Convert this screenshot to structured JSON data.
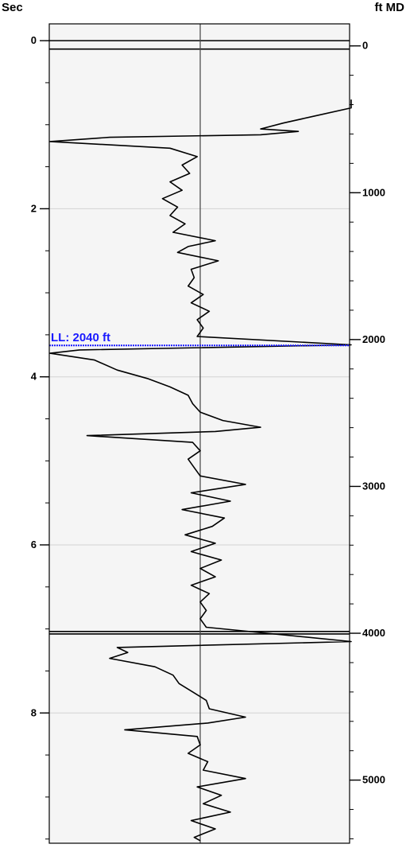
{
  "chart_data": {
    "type": "line",
    "left_axis": {
      "title": "Sec",
      "range": [
        -0.2,
        9.55
      ],
      "major_ticks": [
        0,
        2,
        4,
        6,
        8
      ],
      "tick_labels": [
        "0",
        "2",
        "4",
        "6",
        "8"
      ],
      "minor_step": 0.5,
      "grid": true
    },
    "right_axis": {
      "title": "ft MD",
      "range": [
        -150,
        5430
      ],
      "major_ticks": [
        0,
        1000,
        2000,
        3000,
        4000,
        5000
      ],
      "tick_labels": [
        "0",
        "1000",
        "2000",
        "3000",
        "4000",
        "5000"
      ],
      "minor_step": 200
    },
    "center_line": {
      "value": 0
    },
    "separators_sec": [
      0.0,
      0.1,
      7.03,
      7.06
    ],
    "marker": {
      "label": "LL: 2040 ft",
      "depth_ft": 2040,
      "time_sec": 3.55,
      "color": "#1a1aff"
    },
    "series": [
      {
        "color": "#000000",
        "points": [
          [
            0.7,
            1.45
          ],
          [
            0.8,
            1.1
          ],
          [
            0.9,
            0.75
          ],
          [
            0.98,
            0.55
          ],
          [
            1.05,
            0.4
          ],
          [
            1.08,
            0.65
          ],
          [
            1.12,
            0.4
          ],
          [
            1.15,
            -0.6
          ],
          [
            1.2,
            -1.0
          ],
          [
            1.28,
            -0.2
          ],
          [
            1.38,
            -0.02
          ],
          [
            1.48,
            -0.12
          ],
          [
            1.58,
            -0.07
          ],
          [
            1.68,
            -0.2
          ],
          [
            1.78,
            -0.12
          ],
          [
            1.88,
            -0.25
          ],
          [
            1.98,
            -0.15
          ],
          [
            2.08,
            -0.2
          ],
          [
            2.18,
            -0.1
          ],
          [
            2.28,
            -0.18
          ],
          [
            2.38,
            0.1
          ],
          [
            2.45,
            -0.08
          ],
          [
            2.52,
            -0.15
          ],
          [
            2.62,
            0.12
          ],
          [
            2.72,
            -0.06
          ],
          [
            2.82,
            -0.04
          ],
          [
            2.92,
            -0.08
          ],
          [
            3.02,
            0.02
          ],
          [
            3.12,
            -0.06
          ],
          [
            3.22,
            0.06
          ],
          [
            3.32,
            -0.02
          ],
          [
            3.42,
            0.02
          ],
          [
            3.52,
            -0.02
          ],
          [
            3.62,
            1.6
          ],
          [
            3.68,
            -0.8
          ],
          [
            3.72,
            -1.05
          ],
          [
            3.8,
            -0.7
          ],
          [
            3.92,
            -0.55
          ],
          [
            4.02,
            -0.35
          ],
          [
            4.12,
            -0.2
          ],
          [
            4.22,
            -0.08
          ],
          [
            4.32,
            -0.05
          ],
          [
            4.42,
            0.0
          ],
          [
            4.52,
            0.15
          ],
          [
            4.6,
            0.4
          ],
          [
            4.65,
            0.1
          ],
          [
            4.7,
            -0.75
          ],
          [
            4.78,
            -0.05
          ],
          [
            4.88,
            0.0
          ],
          [
            4.98,
            -0.08
          ],
          [
            5.08,
            -0.04
          ],
          [
            5.18,
            0.0
          ],
          [
            5.28,
            0.3
          ],
          [
            5.38,
            -0.06
          ],
          [
            5.48,
            0.2
          ],
          [
            5.58,
            -0.12
          ],
          [
            5.68,
            0.16
          ],
          [
            5.78,
            0.08
          ],
          [
            5.88,
            -0.1
          ],
          [
            5.98,
            0.1
          ],
          [
            6.08,
            -0.06
          ],
          [
            6.18,
            0.14
          ],
          [
            6.28,
            0.0
          ],
          [
            6.38,
            0.1
          ],
          [
            6.48,
            -0.06
          ],
          [
            6.58,
            0.06
          ],
          [
            6.68,
            0.0
          ],
          [
            6.78,
            0.04
          ],
          [
            6.88,
            0.0
          ],
          [
            6.98,
            0.04
          ],
          [
            7.15,
            1.5
          ],
          [
            7.22,
            -0.55
          ],
          [
            7.28,
            -0.48
          ],
          [
            7.35,
            -0.6
          ],
          [
            7.45,
            -0.3
          ],
          [
            7.55,
            -0.18
          ],
          [
            7.65,
            -0.14
          ],
          [
            7.75,
            -0.05
          ],
          [
            7.85,
            0.04
          ],
          [
            7.95,
            0.06
          ],
          [
            8.05,
            0.3
          ],
          [
            8.12,
            0.05
          ],
          [
            8.2,
            -0.5
          ],
          [
            8.28,
            -0.02
          ],
          [
            8.38,
            0.0
          ],
          [
            8.48,
            -0.08
          ],
          [
            8.58,
            0.05
          ],
          [
            8.68,
            0.02
          ],
          [
            8.78,
            0.3
          ],
          [
            8.88,
            -0.02
          ],
          [
            8.98,
            0.14
          ],
          [
            9.08,
            0.02
          ],
          [
            9.18,
            0.2
          ],
          [
            9.28,
            -0.06
          ],
          [
            9.38,
            0.1
          ],
          [
            9.48,
            -0.04
          ],
          [
            9.52,
            0.0
          ]
        ]
      }
    ]
  }
}
